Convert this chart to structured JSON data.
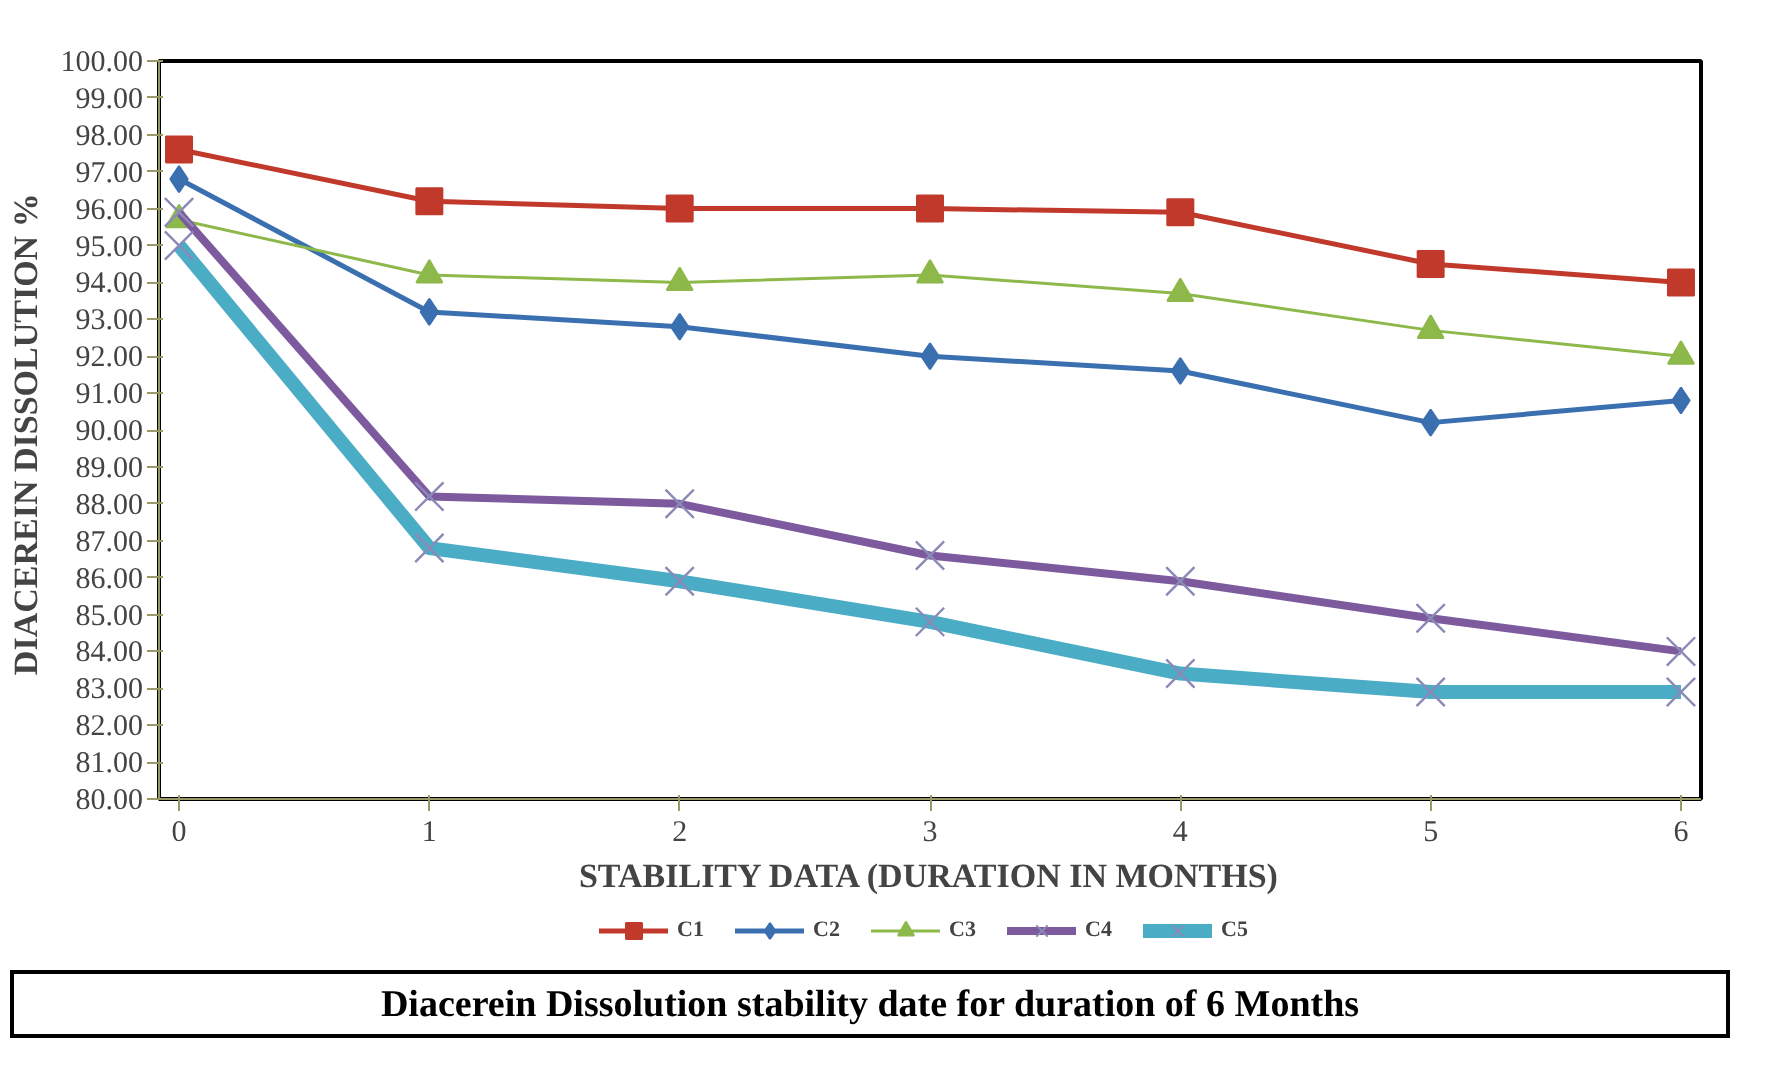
{
  "chart_data": {
    "type": "line",
    "xlabel": "STABILITY DATA (DURATION IN MONTHS)",
    "ylabel": "DIACEREIN  DISSOLUTION %",
    "x": [
      0,
      1,
      2,
      3,
      4,
      5,
      6
    ],
    "series": [
      {
        "name": "C1",
        "color": "#c0392b",
        "marker": "square",
        "values": [
          97.6,
          96.2,
          96.0,
          96.0,
          95.9,
          94.5,
          94.0
        ]
      },
      {
        "name": "C2",
        "color": "#3a6fb0",
        "marker": "diamond",
        "values": [
          96.8,
          93.2,
          92.8,
          92.0,
          91.6,
          90.2,
          90.8
        ]
      },
      {
        "name": "C3",
        "color": "#8db84a",
        "marker": "triangle",
        "values": [
          95.7,
          94.2,
          94.0,
          94.2,
          93.7,
          92.7,
          92.0
        ]
      },
      {
        "name": "C4",
        "color": "#7d5a9e",
        "marker": "cross",
        "values": [
          95.9,
          88.2,
          88.0,
          86.6,
          85.9,
          84.9,
          84.0
        ]
      },
      {
        "name": "C5",
        "color": "#4aacc5",
        "marker": "cross",
        "values": [
          95.0,
          86.8,
          85.9,
          84.8,
          83.4,
          82.9,
          82.9
        ]
      }
    ],
    "xlim": [
      -0.08,
      6.08
    ],
    "xticks": [
      0,
      1,
      2,
      3,
      4,
      5,
      6
    ],
    "ylim": [
      80,
      100
    ],
    "yticks": [
      {
        "value": 80,
        "label": "80.00"
      },
      {
        "value": 81,
        "label": "81.00"
      },
      {
        "value": 82,
        "label": "82.00"
      },
      {
        "value": 83,
        "label": "83.00"
      },
      {
        "value": 84,
        "label": "84.00"
      },
      {
        "value": 85,
        "label": "85.00"
      },
      {
        "value": 86,
        "label": "86.00"
      },
      {
        "value": 87,
        "label": "87.00"
      },
      {
        "value": 88,
        "label": "88.00"
      },
      {
        "value": 89,
        "label": "89.00"
      },
      {
        "value": 90,
        "label": "90.00"
      },
      {
        "value": 91,
        "label": "91.00"
      },
      {
        "value": 92,
        "label": "92.00"
      },
      {
        "value": 93,
        "label": "93.00"
      },
      {
        "value": 94,
        "label": "94.00"
      },
      {
        "value": 95,
        "label": "95.00"
      },
      {
        "value": 96,
        "label": "96.00"
      },
      {
        "value": 97,
        "label": "97.00"
      },
      {
        "value": 98,
        "label": "98.00"
      },
      {
        "value": 99,
        "label": "99.00"
      },
      {
        "value": 100,
        "label": "100.00"
      }
    ],
    "grid": false,
    "legend": "bottom",
    "line_style": "solid",
    "annotations": [
      "Diacerein Dissolution stability date for duration of 6 Months"
    ]
  }
}
